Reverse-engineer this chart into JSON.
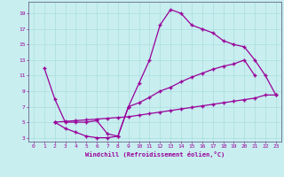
{
  "xlabel": "Windchill (Refroidissement éolien,°C)",
  "line_color": "#990099",
  "bg_color": "#c8eef0",
  "grid_color": "#aadddd",
  "xlim": [
    -0.5,
    23.5
  ],
  "ylim": [
    2.5,
    20.5
  ],
  "xticks": [
    0,
    1,
    2,
    3,
    4,
    5,
    6,
    7,
    8,
    9,
    10,
    11,
    12,
    13,
    14,
    15,
    16,
    17,
    18,
    19,
    20,
    21,
    22,
    23
  ],
  "yticks": [
    3,
    5,
    7,
    9,
    11,
    13,
    15,
    17,
    19
  ],
  "line1_x": [
    1,
    2,
    3,
    4,
    5,
    6,
    7,
    8,
    9,
    10,
    11,
    12,
    13,
    14,
    15,
    16,
    17,
    18,
    19,
    20,
    21,
    22,
    23
  ],
  "line1_y": [
    12,
    8,
    5,
    5,
    5,
    5.2,
    3.5,
    3.2,
    7,
    10,
    13,
    17.5,
    19.5,
    19,
    17.5,
    17,
    16.5,
    15.5,
    15,
    14.7,
    13,
    11,
    8.5
  ],
  "line2_x": [
    2,
    3,
    4,
    5,
    6,
    7,
    8,
    9,
    10,
    11,
    12,
    13,
    14,
    15,
    16,
    17,
    18,
    19,
    20,
    21
  ],
  "line2_y": [
    5,
    4.2,
    3.7,
    3.2,
    3.0,
    3.0,
    3.2,
    7,
    7.5,
    8.2,
    9,
    9.5,
    10.2,
    10.8,
    11.3,
    11.8,
    12.2,
    12.5,
    13,
    11
  ],
  "line3_x": [
    2,
    3,
    4,
    5,
    6,
    7,
    8,
    9,
    10,
    11,
    12,
    13,
    14,
    15,
    16,
    17,
    18,
    19,
    20,
    21,
    22,
    23
  ],
  "line3_y": [
    5,
    5.1,
    5.2,
    5.3,
    5.4,
    5.5,
    5.6,
    5.7,
    5.9,
    6.1,
    6.3,
    6.5,
    6.7,
    6.9,
    7.1,
    7.3,
    7.5,
    7.7,
    7.9,
    8.1,
    8.5,
    8.5
  ],
  "marker": "+",
  "markersize": 3,
  "linewidth": 0.9
}
